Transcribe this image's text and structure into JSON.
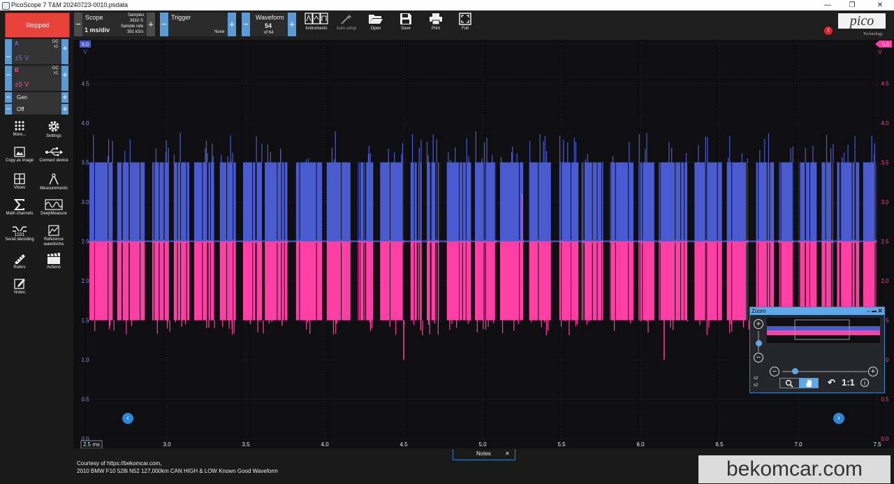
{
  "window": {
    "title": "PicoScope 7 T&M 20240723-0010.psdata",
    "minimize": "—",
    "restore": "❐",
    "close": "✕"
  },
  "toolbar": {
    "run_state": "Stopped",
    "scope": {
      "label": "Scope",
      "timebase": "1 ms/div",
      "samples_label": "Samples",
      "samples_value": "3910 S",
      "rate_label": "Sample rate",
      "rate_value": "391 kS/s"
    },
    "trigger": {
      "label": "Trigger",
      "mode": "None"
    },
    "waveform": {
      "label": "Waveform",
      "current": "54",
      "of_total": "of 64"
    },
    "items": [
      {
        "label": "Instruments",
        "icon": "instruments-icon"
      },
      {
        "label": "Auto setup",
        "icon": "auto-setup-icon"
      },
      {
        "label": "Open",
        "icon": "folder-open-icon"
      },
      {
        "label": "Save",
        "icon": "save-icon"
      },
      {
        "label": "Print",
        "icon": "printer-icon"
      },
      {
        "label": "Full",
        "icon": "fullscreen-icon"
      }
    ],
    "brand": {
      "name": "pico",
      "sub": "Technology",
      "badge": "1"
    }
  },
  "channels": [
    {
      "letter": "A",
      "coupling": "DC",
      "probe": "x1",
      "range": "±5 V",
      "color": "#5b6fd0"
    },
    {
      "letter": "B",
      "coupling": "DC",
      "probe": "x1",
      "range": "±5 V",
      "color": "#ff3fa4"
    }
  ],
  "siggen": {
    "label": "Gen",
    "state": "Off"
  },
  "sidebar": [
    {
      "label": "More...",
      "icon": "grid-dots-icon"
    },
    {
      "label": "Settings",
      "icon": "gear-icon"
    },
    {
      "label": "Copy as image",
      "icon": "image-icon"
    },
    {
      "label": "Connect device",
      "icon": "usb-icon"
    },
    {
      "label": "Views",
      "icon": "views-grid-icon"
    },
    {
      "label": "Measurements",
      "icon": "compass-icon"
    },
    {
      "label": "Math channels",
      "icon": "sigma-icon"
    },
    {
      "label": "DeepMeasure",
      "icon": "deepmeasure-icon"
    },
    {
      "label": "Serial decoding",
      "icon": "serial-icon"
    },
    {
      "label": "Reference waveforms",
      "icon": "reference-icon"
    },
    {
      "label": "Rulers",
      "icon": "ruler-icon"
    },
    {
      "label": "Actions",
      "icon": "clapper-icon"
    },
    {
      "label": "Notes",
      "icon": "notes-icon"
    }
  ],
  "plot": {
    "y_left_unit": "V",
    "y_right_unit": "V",
    "y_ticks": [
      "5.0",
      "4.5",
      "4.0",
      "3.5",
      "3.0",
      "2.5",
      "2.0",
      "1.5",
      "1.0",
      "0.5",
      "0.0"
    ],
    "x_ticks": [
      "2.5 ms",
      "3.0",
      "3.5",
      "4.0",
      "4.5",
      "5.0",
      "5.5",
      "6.0",
      "6.5",
      "7.0",
      "7.5"
    ],
    "x_range": [
      2.5,
      7.5
    ],
    "y_range": [
      0.0,
      5.0
    ],
    "series": [
      {
        "name": "A",
        "color": "#4a5bd0",
        "high": 3.5,
        "recessive": 2.5
      },
      {
        "name": "B",
        "color": "#ff3fa4",
        "low": 1.5,
        "recessive": 2.5
      }
    ]
  },
  "zoom": {
    "title": "Zoom",
    "ratio": "1:1",
    "x_factor": "x2",
    "y_factor": "x2"
  },
  "notes": {
    "tab_label": "Notes",
    "line1": "Courtesy of https://bekomcar.com,",
    "line2": "2010 BMW F10 528i N52 127,000km CAN HIGH & LOW Known Good Waveform"
  },
  "watermark": "bekomcar.com"
}
